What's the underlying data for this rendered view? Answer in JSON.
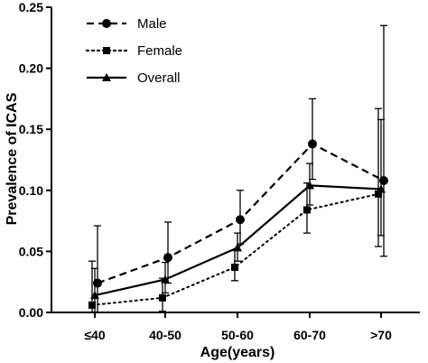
{
  "chart_data": {
    "type": "line",
    "xlabel": "Age(years)",
    "ylabel": "Prevalence of ICAS",
    "categories": [
      "≤40",
      "40-50",
      "50-60",
      "60-70",
      ">70"
    ],
    "ylim": [
      0,
      0.25
    ],
    "yticks": [
      "0.00",
      "0.05",
      "0.10",
      "0.15",
      "0.20",
      "0.25"
    ],
    "grid": false,
    "legend": "top-left",
    "series": [
      {
        "name": "Male",
        "style": "dashed",
        "marker": "circle",
        "values": [
          0.024,
          0.045,
          0.076,
          0.138,
          0.108
        ],
        "err_low": [
          0.0,
          0.024,
          0.056,
          0.109,
          0.046
        ],
        "err_high": [
          0.071,
          0.074,
          0.1,
          0.175,
          0.235
        ]
      },
      {
        "name": "Female",
        "style": "dotted",
        "marker": "square",
        "values": [
          0.006,
          0.012,
          0.037,
          0.084,
          0.097
        ],
        "err_low": [
          0.0,
          0.001,
          0.026,
          0.065,
          0.054
        ],
        "err_high": [
          0.042,
          0.028,
          0.051,
          0.106,
          0.167
        ]
      },
      {
        "name": "Overall",
        "style": "solid",
        "marker": "triangle",
        "values": [
          0.014,
          0.027,
          0.053,
          0.104,
          0.101
        ],
        "err_low": [
          0.0,
          0.016,
          0.042,
          0.088,
          0.063
        ],
        "err_high": [
          0.036,
          0.041,
          0.065,
          0.122,
          0.158
        ]
      }
    ]
  }
}
